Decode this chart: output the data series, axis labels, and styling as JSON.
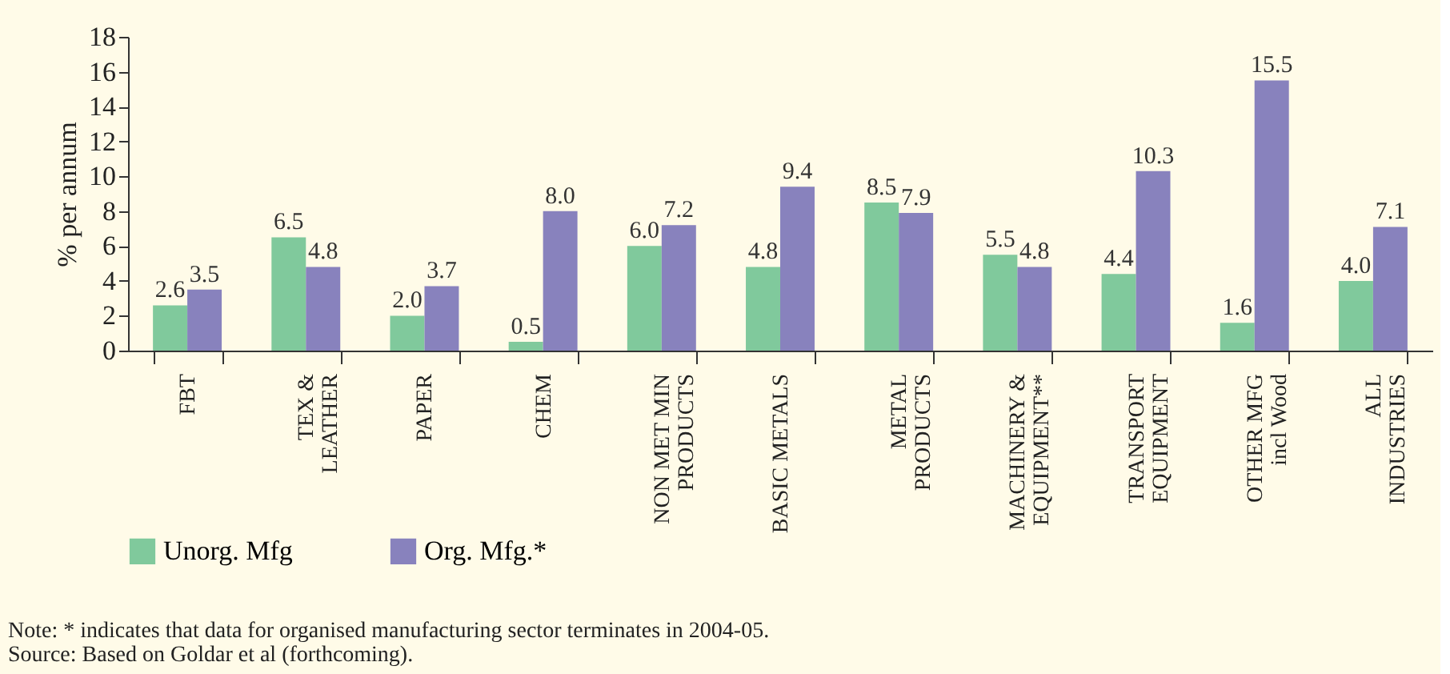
{
  "chart_data": {
    "type": "bar",
    "ylabel": "% per annum",
    "categories": [
      "FBT",
      "TEX &\nLEATHER",
      "PAPER",
      "CHEM",
      "NON MET MIN\nPRODUCTS",
      "BASIC METALS",
      "METAL\nPRODUCTS",
      "MACHINERY &\nEQUIPMENT**",
      "TRANSPORT\nEQUIPMENT",
      "OTHER MFG\nincl Wood",
      "ALL\nINDUSTRIES"
    ],
    "series": [
      {
        "name": "Unorg. Mfg",
        "color": "#80c99c",
        "values": [
          2.6,
          6.5,
          2.0,
          0.5,
          6.0,
          4.8,
          8.5,
          5.5,
          4.4,
          1.6,
          4.0
        ],
        "value_labels": [
          "2.6",
          "6.5",
          "2.0",
          "0.5",
          "6.0",
          "4.8",
          "8.5",
          "5.5",
          "4.4",
          "1.6",
          "4.0"
        ]
      },
      {
        "name": "Org. Mfg.*",
        "color": "#8882bd",
        "values": [
          3.5,
          4.8,
          3.7,
          8.0,
          7.2,
          9.4,
          7.9,
          4.8,
          10.3,
          15.5,
          7.1
        ],
        "value_labels": [
          "3.5",
          "4.8",
          "3.7",
          "8.0",
          "7.2",
          "9.4",
          "7.9",
          "4.8",
          "10.3",
          "15.5",
          "7.1"
        ]
      }
    ],
    "ylim": [
      0,
      18
    ],
    "yticks": [
      0,
      2,
      4,
      6,
      8,
      10,
      12,
      14,
      16,
      18
    ],
    "legend": "bottom",
    "grid": false,
    "annotations": [
      "Note: * indicates that data for organised manufacturing sector terminates in 2004-05.",
      "Source: Based on Goldar et al (forthcoming)."
    ]
  }
}
